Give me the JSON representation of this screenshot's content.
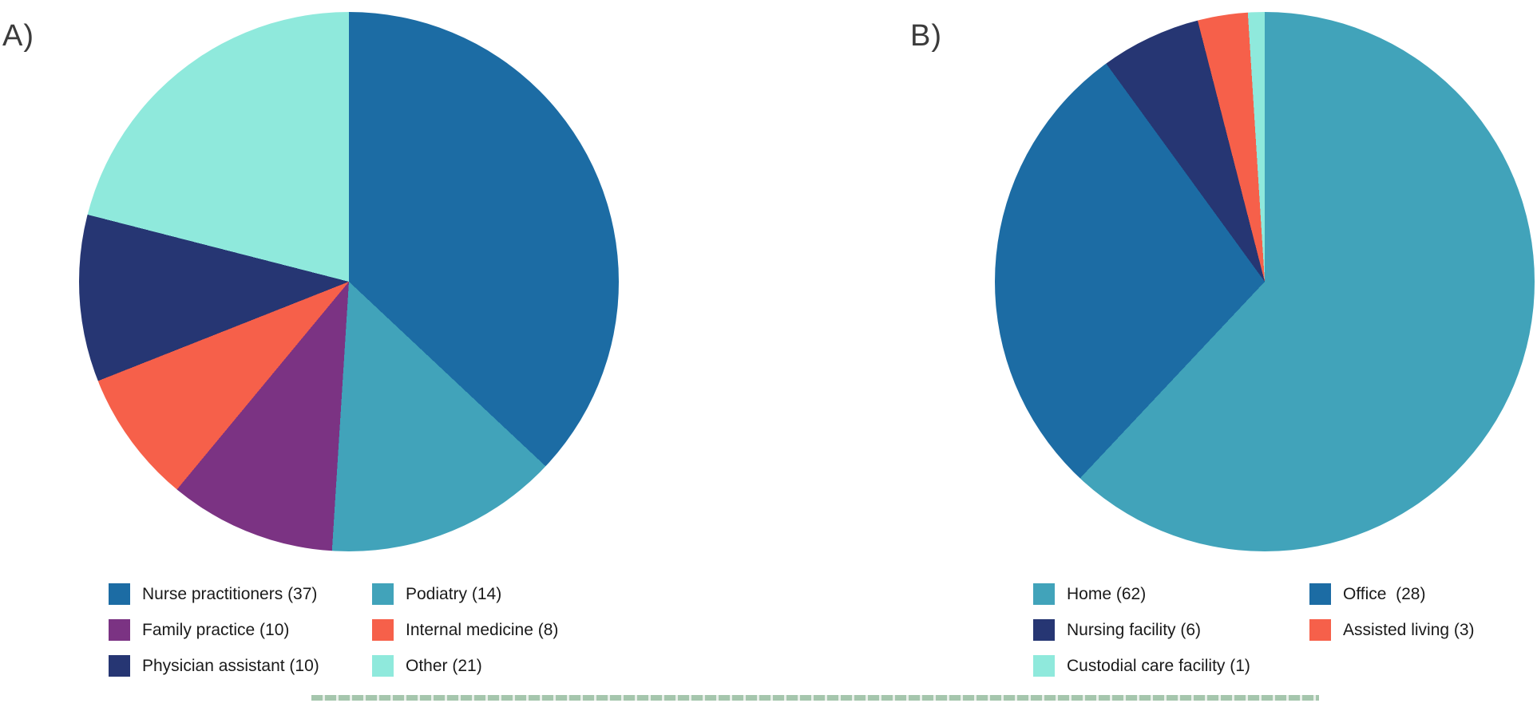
{
  "chart_data": [
    {
      "type": "pie",
      "panel_label": "A)",
      "start_angle_deg": 0,
      "direction": "clockwise",
      "total": 100,
      "slices": [
        {
          "label": "Nurse practitioners",
          "value": 37,
          "color": "#1c6ca4",
          "legend_label": "Nurse practitioners (37)"
        },
        {
          "label": "Podiatry",
          "value": 14,
          "color": "#41a3ba",
          "legend_label": "Podiatry (14)"
        },
        {
          "label": "Family practice",
          "value": 10,
          "color": "#7b3383",
          "legend_label": "Family practice (10)"
        },
        {
          "label": "Internal medicine",
          "value": 8,
          "color": "#f6604a",
          "legend_label": "Internal medicine (8)"
        },
        {
          "label": "Physician assistant",
          "value": 10,
          "color": "#263673",
          "legend_label": "Physician assistant (10)"
        },
        {
          "label": "Other",
          "value": 21,
          "color": "#8fe9dc",
          "legend_label": "Other (21)"
        }
      ],
      "legend_position": "below-two-columns"
    },
    {
      "type": "pie",
      "panel_label": "B)",
      "start_angle_deg": 0,
      "direction": "clockwise",
      "total": 100,
      "slices": [
        {
          "label": "Home",
          "value": 62,
          "color": "#41a3ba",
          "legend_label": "Home (62)"
        },
        {
          "label": "Office",
          "value": 28,
          "color": "#1c6ca4",
          "legend_label": "Office  (28)"
        },
        {
          "label": "Nursing facility",
          "value": 6,
          "color": "#263673",
          "legend_label": "Nursing facility (6)"
        },
        {
          "label": "Assisted living",
          "value": 3,
          "color": "#f6604a",
          "legend_label": "Assisted living (3)"
        },
        {
          "label": "Custodial care facility",
          "value": 1,
          "color": "#8fe9dc",
          "legend_label": "Custodial care facility (1)"
        }
      ],
      "legend_position": "below-two-columns"
    }
  ]
}
